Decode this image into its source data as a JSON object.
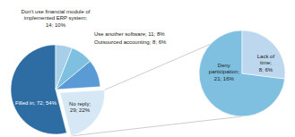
{
  "chart_data": [
    {
      "type": "pie",
      "values": [
        54,
        22,
        10,
        8,
        6
      ],
      "value_labels": [
        "Filled in; 72; 54%",
        "No reply;\n29; 22%",
        "Don't use financial module of\nimplemented ERP system;\n14; 10%",
        "Use another software; 11; 8%",
        "Outsourced accounting; 8; 6%"
      ],
      "colors": [
        "#2E6DA4",
        "#D6E8F5",
        "#5B9BD5",
        "#7FBFDF",
        "#A8CFEA"
      ],
      "data_labels": true
    },
    {
      "type": "pie",
      "values": [
        73,
        27
      ],
      "value_labels": [
        "Deny\nparticipation;\n21; 16%",
        "Lack of\ntime;\n8; 6%"
      ],
      "colors": [
        "#7FBFDF",
        "#BDD7EE"
      ],
      "data_labels": true
    }
  ]
}
